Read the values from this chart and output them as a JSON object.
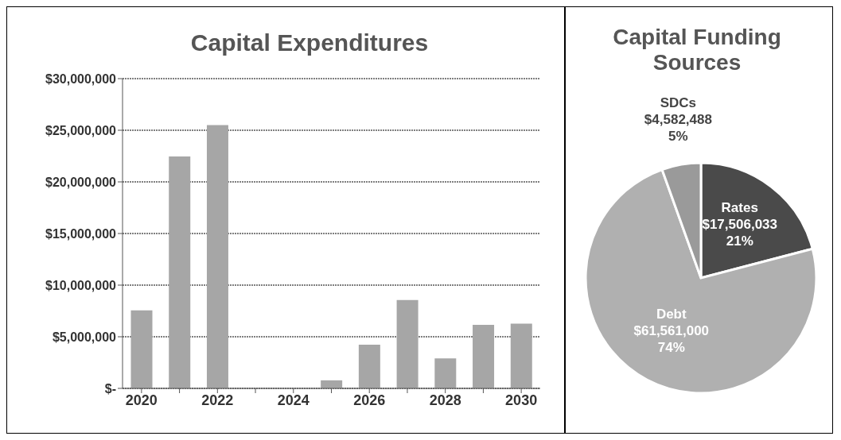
{
  "chart_data": [
    {
      "type": "bar",
      "title": "Capital Expenditures",
      "categories": [
        "2020",
        null,
        "2022",
        null,
        "2024",
        null,
        "2026",
        null,
        "2028",
        null,
        "2030"
      ],
      "values": [
        7550000,
        22470000,
        25500000,
        0,
        0,
        780000,
        4240000,
        8550000,
        2910000,
        6150000,
        6260000
      ],
      "color": "#a6a6a6",
      "ylim": [
        0,
        30000000
      ],
      "yticks": [
        {
          "value": 0,
          "label": "$-"
        },
        {
          "value": 5000000,
          "label": "$5,000,000"
        },
        {
          "value": 10000000,
          "label": "$10,000,000"
        },
        {
          "value": 15000000,
          "label": "$15,000,000"
        },
        {
          "value": 20000000,
          "label": "$20,000,000"
        },
        {
          "value": 25000000,
          "label": "$25,000,000"
        },
        {
          "value": 30000000,
          "label": "$30,000,000"
        }
      ],
      "grid": "y",
      "legend": false
    },
    {
      "type": "pie",
      "title": "Capital Funding Sources",
      "categories": [
        "Rates",
        "Debt",
        "SDCs"
      ],
      "values": [
        17506033,
        61561000,
        4582488
      ],
      "colors": [
        "#4a4a4a",
        "#b0b0b0",
        "#9a9a9a"
      ],
      "value_labels": [
        "$17,506,033\n21%",
        "$61,561,000\n74%",
        "$4,582,488\n5%"
      ],
      "legend": false
    }
  ]
}
